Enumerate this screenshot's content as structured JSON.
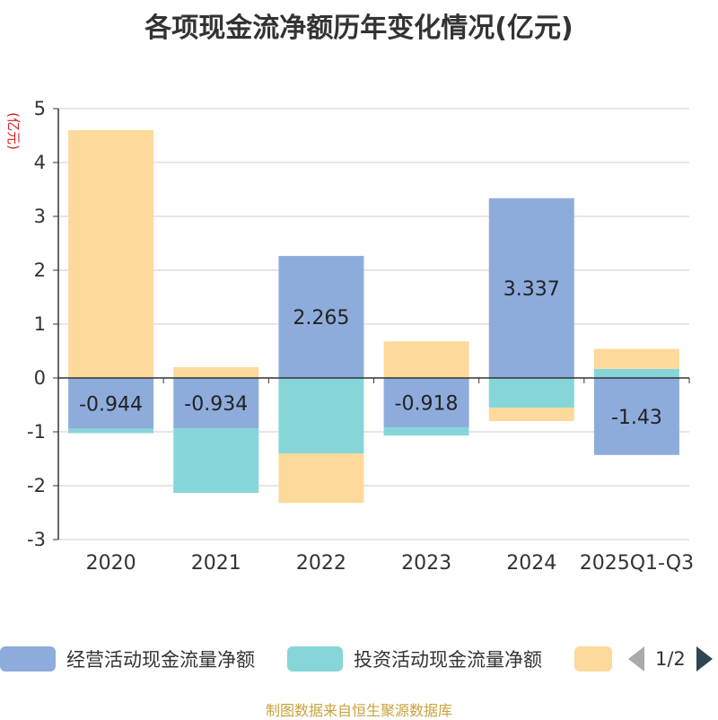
{
  "title": "各项现金流净额历年变化情况(亿元)",
  "source_text": "制图数据来自恒生聚源数据库",
  "legend": {
    "items": [
      {
        "label": "经营活动现金流量净额",
        "color": "#8eacdb"
      },
      {
        "label": "投资活动现金流量净额",
        "color": "#86d6d9"
      },
      {
        "label": "",
        "color": "#fdd99b"
      }
    ],
    "page_text": "1/2"
  },
  "chart_data": {
    "type": "bar",
    "stacked": true,
    "categories": [
      "2020",
      "2021",
      "2022",
      "2023",
      "2024",
      "2025Q1-Q3"
    ],
    "ylabel": "(亿元)",
    "ylim": [
      -3,
      5
    ],
    "yticks": [
      -3,
      -2,
      -1,
      0,
      1,
      2,
      3,
      4,
      5
    ],
    "grid": true,
    "legend_position": "bottom",
    "series": [
      {
        "name": "经营活动现金流量净额",
        "color": "#8eacdb",
        "values": [
          -0.944,
          -0.934,
          2.265,
          -0.918,
          3.337,
          -1.43
        ],
        "data_labels": [
          "-0.944",
          "-0.934",
          "2.265",
          "-0.918",
          "3.337",
          "-1.43"
        ]
      },
      {
        "name": "投资活动现金流量净额",
        "color": "#86d6d9",
        "values": [
          -0.08,
          -1.2,
          -1.4,
          -0.15,
          -0.55,
          0.17
        ]
      },
      {
        "color": "#fdd99b",
        "values": [
          4.6,
          0.2,
          -0.92,
          0.68,
          -0.25,
          0.37
        ]
      }
    ]
  }
}
